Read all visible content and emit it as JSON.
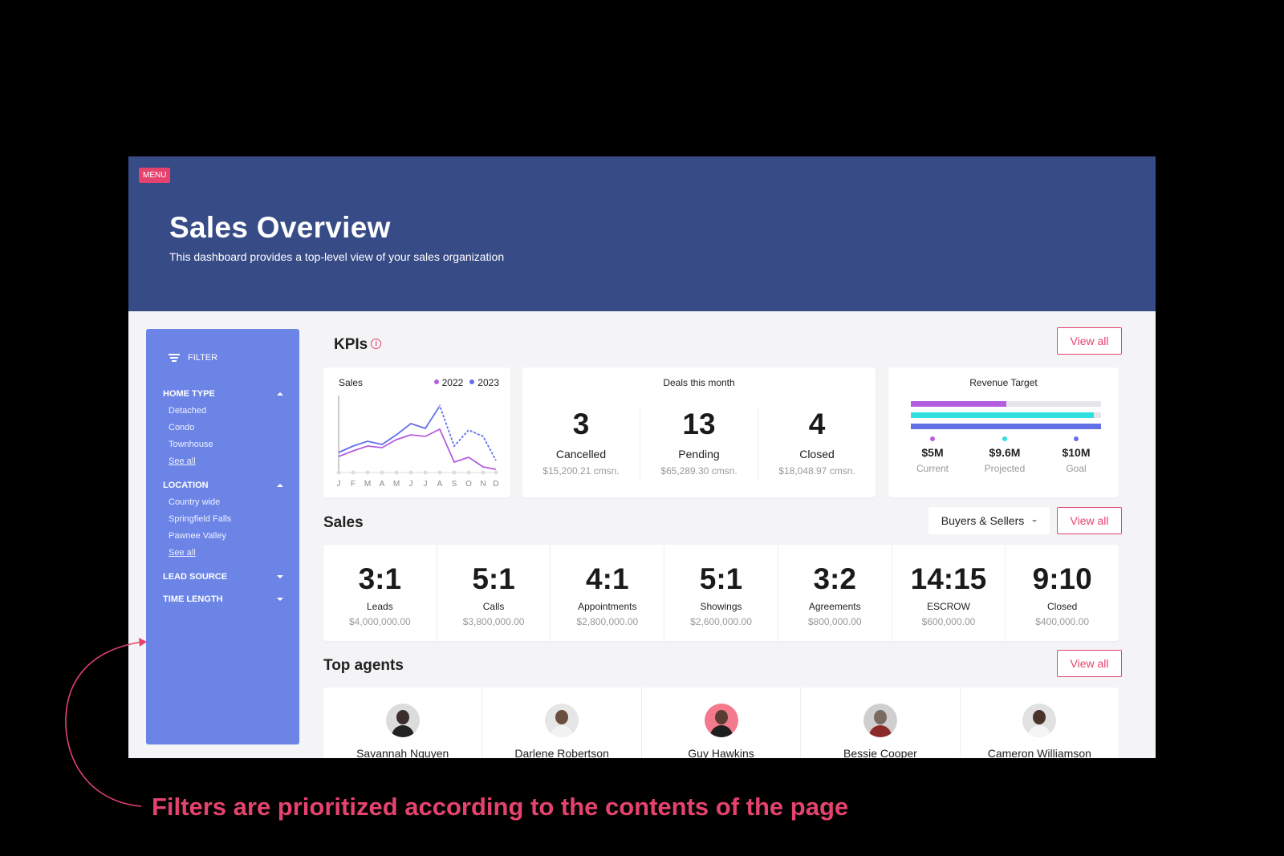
{
  "header": {
    "menu_label": "MENU",
    "title": "Sales Overview",
    "subtitle": "This dashboard provides a top-level view of your sales organization"
  },
  "sidebar": {
    "filter_label": "FILTER",
    "sections": [
      {
        "title": "HOME TYPE",
        "expanded": true,
        "items": [
          "Detached",
          "Condo",
          "Townhouse"
        ],
        "see_all": "See all"
      },
      {
        "title": "LOCATION",
        "expanded": true,
        "items": [
          "Country wide",
          "Springfield Falls",
          "Pawnee Valley"
        ],
        "see_all": "See all"
      },
      {
        "title": "LEAD SOURCE",
        "expanded": false
      },
      {
        "title": "TIME LENGTH",
        "expanded": false
      }
    ]
  },
  "kpis": {
    "title": "KPIs",
    "view_all": "View all",
    "sales_chart": {
      "title": "Sales",
      "legend": [
        "2022",
        "2023"
      ],
      "months": [
        "J",
        "F",
        "M",
        "A",
        "M",
        "J",
        "J",
        "A",
        "S",
        "O",
        "N",
        "D"
      ]
    },
    "deals": {
      "title": "Deals this month",
      "items": [
        {
          "value": "3",
          "label": "Cancelled",
          "sub": "$15,200.21 cmsn."
        },
        {
          "value": "13",
          "label": "Pending",
          "sub": "$65,289.30 cmsn."
        },
        {
          "value": "4",
          "label": "Closed",
          "sub": "$18,048.97 cmsn."
        }
      ]
    },
    "revenue": {
      "title": "Revenue Target",
      "stats": [
        {
          "value": "$5M",
          "label": "Current",
          "color": "#b45ee0"
        },
        {
          "value": "$9.6M",
          "label": "Projected",
          "color": "#2fe0e0"
        },
        {
          "value": "$10M",
          "label": "Goal",
          "color": "#6270e8"
        }
      ],
      "bar_fractions": [
        0.5,
        0.96,
        1.0
      ]
    }
  },
  "sales": {
    "title": "Sales",
    "filter_value": "Buyers & Sellers",
    "view_all": "View all",
    "ratios": [
      {
        "value": "3:1",
        "label": "Leads",
        "amount": "$4,000,000.00"
      },
      {
        "value": "5:1",
        "label": "Calls",
        "amount": "$3,800,000.00"
      },
      {
        "value": "4:1",
        "label": "Appointments",
        "amount": "$2,800,000.00"
      },
      {
        "value": "5:1",
        "label": "Showings",
        "amount": "$2,600,000.00"
      },
      {
        "value": "3:2",
        "label": "Agreements",
        "amount": "$800,000.00"
      },
      {
        "value": "14:15",
        "label": "ESCROW",
        "amount": "$600,000.00"
      },
      {
        "value": "9:10",
        "label": "Closed",
        "amount": "$400,000.00"
      }
    ]
  },
  "agents": {
    "title": "Top agents",
    "view_all": "View all",
    "list": [
      {
        "name": "Savannah Nguyen"
      },
      {
        "name": "Darlene Robertson"
      },
      {
        "name": "Guy Hawkins"
      },
      {
        "name": "Bessie Cooper"
      },
      {
        "name": "Cameron Williamson"
      }
    ]
  },
  "caption": "Filters are prioritized according to the contents of the page",
  "colors": {
    "accent": "#e5436e",
    "header": "#374b86",
    "sidebar": "#6b84e6",
    "series_2022": "#b45ee0",
    "series_2023": "#6270e8"
  }
}
